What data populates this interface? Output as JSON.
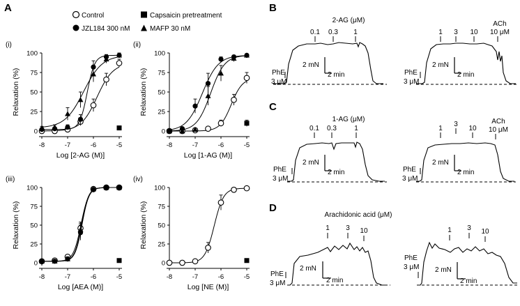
{
  "panel_labels": {
    "A": "A",
    "B": "B",
    "C": "C",
    "D": "D"
  },
  "legend": {
    "control": "Control",
    "capsaicin": "Capsaicin pretreatment",
    "jzl": "JZL184 300 nM",
    "mafp": "MAFP 30 nM"
  },
  "chart_data": [
    {
      "type": "line",
      "sub_label": "(i)",
      "xlabel": "Log [2-AG (M)]",
      "ylabel": "Relaxation (%)",
      "xlim": [
        -8,
        -5
      ],
      "ylim": [
        0,
        100
      ],
      "xticks": [
        "-8",
        "-7",
        "-6",
        "-5"
      ],
      "yticks": [
        "0",
        "25",
        "50",
        "75",
        "100"
      ],
      "series": [
        {
          "name": "Control",
          "marker": "open-circle",
          "x": [
            -8,
            -7.5,
            -7,
            -6.5,
            -6,
            -5.5,
            -5
          ],
          "y": [
            0,
            0,
            2,
            12,
            33,
            66,
            87
          ],
          "err": [
            1,
            1,
            2,
            5,
            8,
            8,
            5
          ]
        },
        {
          "name": "JZL184 300 nM",
          "marker": "filled-circle",
          "x": [
            -8,
            -7.5,
            -7,
            -6.5,
            -6,
            -5.5,
            -5
          ],
          "y": [
            2,
            3,
            5,
            15,
            82,
            95,
            97
          ],
          "err": [
            1,
            2,
            3,
            6,
            8,
            3,
            2
          ]
        },
        {
          "name": "MAFP 30 nM",
          "marker": "filled-triangle",
          "x": [
            -8,
            -7.5,
            -7,
            -6.5,
            -6,
            -5.5,
            -5
          ],
          "y": [
            4,
            5,
            22,
            40,
            73,
            92,
            97
          ],
          "err": [
            2,
            3,
            8,
            10,
            10,
            5,
            3
          ]
        },
        {
          "name": "Capsaicin pretreatment",
          "marker": "filled-square",
          "x": [
            -5
          ],
          "y": [
            4
          ],
          "err": [
            0
          ]
        }
      ]
    },
    {
      "type": "line",
      "sub_label": "(ii)",
      "xlabel": "Log [1-AG (M)]",
      "ylabel": "Relaxation (%)",
      "xlim": [
        -8,
        -5
      ],
      "ylim": [
        0,
        100
      ],
      "xticks": [
        "-8",
        "-7",
        "-6",
        "-5"
      ],
      "yticks": [
        "0",
        "25",
        "50",
        "75",
        "100"
      ],
      "series": [
        {
          "name": "Control",
          "marker": "open-circle",
          "x": [
            -8,
            -7.5,
            -7,
            -6.5,
            -6,
            -5.5,
            -5
          ],
          "y": [
            0,
            0,
            1,
            3,
            10,
            40,
            68
          ],
          "err": [
            1,
            1,
            1,
            2,
            4,
            7,
            7
          ]
        },
        {
          "name": "JZL184 300 nM",
          "marker": "filled-circle",
          "x": [
            -8,
            -7.5,
            -7,
            -6.5,
            -6,
            -5.5,
            -5
          ],
          "y": [
            0,
            3,
            32,
            61,
            92,
            95,
            97
          ],
          "err": [
            1,
            2,
            9,
            13,
            3,
            2,
            2
          ]
        },
        {
          "name": "MAFP 30 nM",
          "marker": "filled-triangle",
          "x": [
            -8,
            -7.5,
            -7,
            -6.5,
            -6,
            -5.5,
            -5
          ],
          "y": [
            0,
            0,
            2,
            45,
            74,
            93,
            97
          ],
          "err": [
            1,
            1,
            2,
            12,
            10,
            4,
            2
          ]
        },
        {
          "name": "Capsaicin pretreatment",
          "marker": "filled-square",
          "x": [
            -5
          ],
          "y": [
            10
          ],
          "err": [
            4
          ]
        }
      ]
    },
    {
      "type": "line",
      "sub_label": "(iii)",
      "xlabel": "Log [AEA (M)]",
      "ylabel": "Relaxation (%)",
      "xlim": [
        -8,
        -5
      ],
      "ylim": [
        0,
        100
      ],
      "xticks": [
        "-8",
        "-7",
        "-6",
        "-5"
      ],
      "yticks": [
        "0",
        "25",
        "50",
        "75",
        "100"
      ],
      "series": [
        {
          "name": "Control",
          "marker": "open-circle",
          "x": [
            -8,
            -7.5,
            -7,
            -6.5,
            -6,
            -5.5,
            -5
          ],
          "y": [
            2,
            3,
            8,
            46,
            98,
            100,
            100
          ],
          "err": [
            2,
            2,
            3,
            8,
            2,
            1,
            1
          ]
        },
        {
          "name": "JZL184 300 nM",
          "marker": "filled-circle",
          "x": [
            -8,
            -7.5,
            -7,
            -6.5,
            -6,
            -5.5,
            -5
          ],
          "y": [
            2,
            2,
            5,
            40,
            97,
            100,
            100
          ],
          "err": [
            2,
            2,
            3,
            10,
            2,
            1,
            1
          ]
        },
        {
          "name": "MAFP 30 nM",
          "marker": "filled-triangle",
          "x": [
            -8,
            -7.5,
            -7,
            -6.5,
            -6,
            -5.5,
            -5
          ],
          "y": [
            2,
            2,
            5,
            44,
            98,
            100,
            100
          ],
          "err": [
            2,
            2,
            3,
            8,
            2,
            1,
            1
          ]
        },
        {
          "name": "Capsaicin pretreatment",
          "marker": "filled-square",
          "x": [
            -5
          ],
          "y": [
            3
          ],
          "err": [
            0
          ]
        }
      ]
    },
    {
      "type": "line",
      "sub_label": "(iv)",
      "xlabel": "Log [NE (M)]",
      "ylabel": "Relaxation (%)",
      "xlim": [
        -8,
        -5
      ],
      "ylim": [
        0,
        100
      ],
      "xticks": [
        "-8",
        "-7",
        "-6",
        "-5"
      ],
      "yticks": [
        "0",
        "25",
        "50",
        "75",
        "100"
      ],
      "series": [
        {
          "name": "Control",
          "marker": "open-circle",
          "x": [
            -8,
            -7.5,
            -7,
            -6.5,
            -6,
            -5.5,
            -5
          ],
          "y": [
            0,
            0,
            2,
            20,
            80,
            97,
            99
          ],
          "err": [
            1,
            1,
            2,
            7,
            10,
            2,
            1
          ]
        },
        {
          "name": "Capsaicin pretreatment",
          "marker": "filled-square",
          "x": [
            -5
          ],
          "y": [
            3
          ],
          "err": [
            0
          ]
        }
      ]
    }
  ],
  "traces": {
    "B": {
      "title": "2-AG (μM)",
      "left": {
        "phe": [
          "PhE",
          "3 μM"
        ],
        "doses": [
          "0.1",
          "0.3",
          "1"
        ],
        "scale_v": "2 mN",
        "scale_h": "2 min"
      },
      "right": {
        "phe": [
          "PhE",
          "3 μM"
        ],
        "doses": [
          "1",
          "3",
          "10"
        ],
        "ach": [
          "ACh",
          "10 μM"
        ],
        "scale_v": "2 mN",
        "scale_h": "2 min"
      }
    },
    "C": {
      "title": "1-AG (μM)",
      "left": {
        "phe": [
          "PhE",
          "3 μM"
        ],
        "doses": [
          "0.1",
          "0.3",
          "1"
        ],
        "scale_v": "2 mN",
        "scale_h": "2 min"
      },
      "right": {
        "phe": [
          "PhE",
          "3 μM"
        ],
        "doses": [
          "1",
          "3",
          "10"
        ],
        "ach": [
          "ACh",
          "10 μM"
        ],
        "scale_v": "2 mN",
        "scale_h": "2 min"
      }
    },
    "D": {
      "title": "Arachidonic acid (μM)",
      "left": {
        "phe": [
          "PhE",
          "3 μM"
        ],
        "doses": [
          "1",
          "3",
          "10"
        ],
        "scale_v": "2 mN",
        "scale_h": "2 min"
      },
      "right": {
        "phe": [
          "PhE",
          "3 μM"
        ],
        "doses": [
          "1",
          "3",
          "10"
        ],
        "scale_v": "2 mN",
        "scale_h": "2 min"
      }
    }
  }
}
